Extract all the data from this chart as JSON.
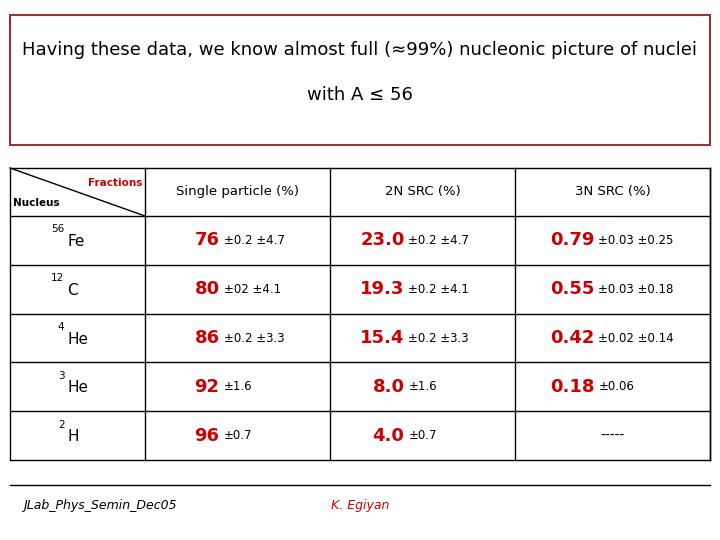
{
  "title_line1": "Having these data, we know almost full (≈99%) nucleonic picture of nuclei",
  "title_line2": "with A ≤ 56",
  "rows": [
    {
      "nucleus_super": "56",
      "nucleus_base": "Fe",
      "sp_main": "76",
      "sp_err": "±0.2 ±4.7",
      "n2_main": "23.0",
      "n2_err": "±0.2 ±4.7",
      "n3_main": "0.79",
      "n3_err": "±0.03 ±0.25"
    },
    {
      "nucleus_super": "12",
      "nucleus_base": "C",
      "sp_main": "80",
      "sp_err": "±02 ±4.1",
      "n2_main": "19.3",
      "n2_err": "±0.2 ±4.1",
      "n3_main": "0.55",
      "n3_err": "±0.03 ±0.18"
    },
    {
      "nucleus_super": "4",
      "nucleus_base": "He",
      "sp_main": "86",
      "sp_err": "±0.2 ±3.3",
      "n2_main": "15.4",
      "n2_err": "±0.2 ±3.3",
      "n3_main": "0.42",
      "n3_err": "±0.02 ±0.14"
    },
    {
      "nucleus_super": "3",
      "nucleus_base": "He",
      "sp_main": "92",
      "sp_err": "±1.6",
      "n2_main": "8.0",
      "n2_err": "±1.6",
      "n3_main": "0.18",
      "n3_err": "±0.06"
    },
    {
      "nucleus_super": "2",
      "nucleus_base": "H",
      "sp_main": "96",
      "sp_err": "±0.7",
      "n2_main": "4.0",
      "n2_err": "±0.7",
      "n3_main": "-----",
      "n3_err": ""
    }
  ],
  "footer_left": "JLab_Phys_Semin_Dec05",
  "footer_right": "K. Egiyan",
  "red_color": "#CC0000",
  "bg_color": "#FFFFFF"
}
